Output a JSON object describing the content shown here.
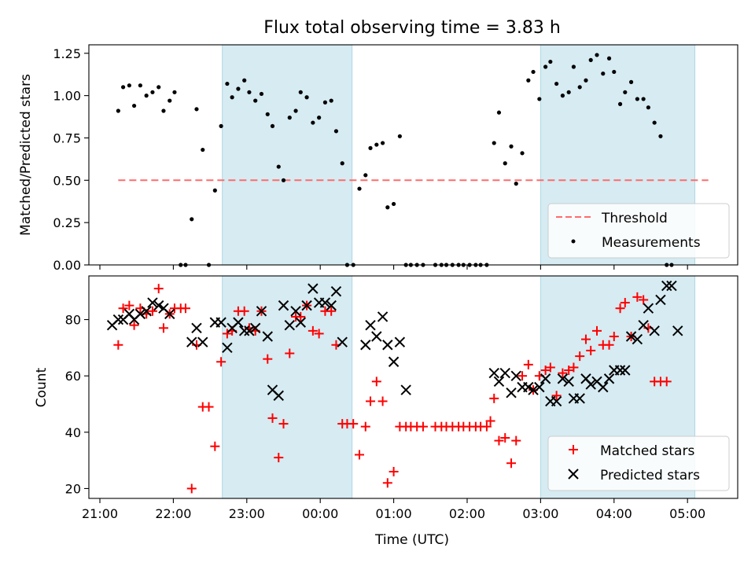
{
  "figure_title": "Flux total observing time = 3.83 h",
  "x_tick_labels": [
    "21:00",
    "22:00",
    "23:00",
    "00:00",
    "01:00",
    "02:00",
    "03:00",
    "04:00",
    "05:00"
  ],
  "colors": {
    "shade": "#add8e6",
    "threshold": "#ff6b6b",
    "measurements": "#000000",
    "matched": "#ff0000",
    "predicted": "#000000"
  },
  "chart_data": [
    {
      "type": "scatter",
      "ylabel": "Matched/Predicted stars",
      "y_tick_labels": [
        "0.00",
        "0.25",
        "0.50",
        "0.75",
        "1.00",
        "1.25"
      ],
      "y_ticks": [
        0,
        0.25,
        0.5,
        0.75,
        1.0,
        1.25
      ],
      "xlim": [
        "20:51",
        "05:41"
      ],
      "ylim": [
        0,
        1.3
      ],
      "shaded_intervals": [
        [
          "22:40",
          "00:26"
        ],
        [
          "03:00",
          "05:06"
        ]
      ],
      "legend": {
        "position": "lower right",
        "threshold_label": "Threshold",
        "measurements_label": "Measurements"
      },
      "threshold": {
        "value": 0.5,
        "x_start": "21:15",
        "x_end": "05:17"
      },
      "measurements": [
        [
          "21:15",
          0.91
        ],
        [
          "21:19",
          1.05
        ],
        [
          "21:24",
          1.06
        ],
        [
          "21:28",
          0.94
        ],
        [
          "21:33",
          1.06
        ],
        [
          "21:38",
          1.0
        ],
        [
          "21:43",
          1.02
        ],
        [
          "21:48",
          1.05
        ],
        [
          "21:52",
          0.91
        ],
        [
          "21:57",
          0.97
        ],
        [
          "22:01",
          1.02
        ],
        [
          "22:06",
          0.0
        ],
        [
          "22:10",
          0.0
        ],
        [
          "22:15",
          0.27
        ],
        [
          "22:19",
          0.92
        ],
        [
          "22:24",
          0.68
        ],
        [
          "22:29",
          0.0
        ],
        [
          "22:34",
          0.44
        ],
        [
          "22:39",
          0.82
        ],
        [
          "22:44",
          1.07
        ],
        [
          "22:48",
          0.99
        ],
        [
          "22:53",
          1.04
        ],
        [
          "22:58",
          1.09
        ],
        [
          "23:02",
          1.02
        ],
        [
          "23:07",
          0.97
        ],
        [
          "23:12",
          1.01
        ],
        [
          "23:17",
          0.89
        ],
        [
          "23:21",
          0.82
        ],
        [
          "23:26",
          0.58
        ],
        [
          "23:30",
          0.5
        ],
        [
          "23:35",
          0.87
        ],
        [
          "23:40",
          0.91
        ],
        [
          "23:44",
          1.02
        ],
        [
          "23:49",
          0.99
        ],
        [
          "23:54",
          0.84
        ],
        [
          "23:59",
          0.87
        ],
        [
          "00:04",
          0.96
        ],
        [
          "00:09",
          0.97
        ],
        [
          "00:13",
          0.79
        ],
        [
          "00:18",
          0.6
        ],
        [
          "00:22",
          0.0
        ],
        [
          "00:27",
          0.0
        ],
        [
          "00:32",
          0.45
        ],
        [
          "00:37",
          0.53
        ],
        [
          "00:41",
          0.69
        ],
        [
          "00:46",
          0.71
        ],
        [
          "00:51",
          0.72
        ],
        [
          "00:55",
          0.34
        ],
        [
          "01:00",
          0.36
        ],
        [
          "01:05",
          0.76
        ],
        [
          "01:10",
          0.0
        ],
        [
          "01:14",
          0.0
        ],
        [
          "01:19",
          0.0
        ],
        [
          "01:24",
          0.0
        ],
        [
          "01:34",
          0.0
        ],
        [
          "01:39",
          0.0
        ],
        [
          "01:43",
          0.0
        ],
        [
          "01:48",
          0.0
        ],
        [
          "01:53",
          0.0
        ],
        [
          "01:57",
          0.0
        ],
        [
          "02:02",
          0.0
        ],
        [
          "02:07",
          0.0
        ],
        [
          "02:11",
          0.0
        ],
        [
          "02:16",
          0.0
        ],
        [
          "02:22",
          0.72
        ],
        [
          "02:26",
          0.9
        ],
        [
          "02:31",
          0.6
        ],
        [
          "02:36",
          0.7
        ],
        [
          "02:40",
          0.48
        ],
        [
          "02:45",
          0.66
        ],
        [
          "02:50",
          1.09
        ],
        [
          "02:54",
          1.14
        ],
        [
          "02:59",
          0.98
        ],
        [
          "03:04",
          1.17
        ],
        [
          "03:08",
          1.2
        ],
        [
          "03:13",
          1.07
        ],
        [
          "03:18",
          1.0
        ],
        [
          "03:23",
          1.02
        ],
        [
          "03:27",
          1.17
        ],
        [
          "03:32",
          1.05
        ],
        [
          "03:37",
          1.09
        ],
        [
          "03:41",
          1.21
        ],
        [
          "03:46",
          1.24
        ],
        [
          "03:51",
          1.13
        ],
        [
          "03:56",
          1.22
        ],
        [
          "04:00",
          1.14
        ],
        [
          "04:05",
          0.95
        ],
        [
          "04:09",
          1.02
        ],
        [
          "04:14",
          1.08
        ],
        [
          "04:19",
          0.98
        ],
        [
          "04:24",
          0.98
        ],
        [
          "04:28",
          0.93
        ],
        [
          "04:33",
          0.84
        ],
        [
          "04:38",
          0.76
        ],
        [
          "04:43",
          0.0
        ],
        [
          "04:47",
          0.0
        ]
      ]
    },
    {
      "type": "scatter",
      "ylabel": "Count",
      "xlabel": "Time (UTC)",
      "y_tick_labels": [
        "20",
        "40",
        "60",
        "80"
      ],
      "y_ticks": [
        20,
        40,
        60,
        80
      ],
      "xlim": [
        "20:51",
        "05:41"
      ],
      "ylim": [
        16.5,
        95.5
      ],
      "shaded_intervals": [
        [
          "22:40",
          "00:26"
        ],
        [
          "03:00",
          "05:06"
        ]
      ],
      "legend": {
        "position": "lower right",
        "matched_label": "Matched stars",
        "predicted_label": "Predicted stars"
      },
      "matched": [
        [
          "21:15",
          71
        ],
        [
          "21:19",
          84
        ],
        [
          "21:24",
          85
        ],
        [
          "21:28",
          78
        ],
        [
          "21:33",
          84
        ],
        [
          "21:38",
          82
        ],
        [
          "21:43",
          83
        ],
        [
          "21:48",
          91
        ],
        [
          "21:52",
          77
        ],
        [
          "21:57",
          82
        ],
        [
          "22:01",
          84
        ],
        [
          "22:06",
          84
        ],
        [
          "22:10",
          84
        ],
        [
          "22:15",
          20
        ],
        [
          "22:19",
          71
        ],
        [
          "22:24",
          49
        ],
        [
          "22:29",
          49
        ],
        [
          "22:34",
          35
        ],
        [
          "22:39",
          65
        ],
        [
          "22:44",
          75
        ],
        [
          "22:48",
          76
        ],
        [
          "22:53",
          83
        ],
        [
          "22:58",
          83
        ],
        [
          "23:02",
          77
        ],
        [
          "23:07",
          76
        ],
        [
          "23:12",
          83
        ],
        [
          "23:17",
          66
        ],
        [
          "23:21",
          45
        ],
        [
          "23:26",
          31
        ],
        [
          "23:30",
          43
        ],
        [
          "23:35",
          68
        ],
        [
          "23:40",
          81
        ],
        [
          "23:44",
          81
        ],
        [
          "23:49",
          85
        ],
        [
          "23:54",
          76
        ],
        [
          "23:59",
          75
        ],
        [
          "00:04",
          83
        ],
        [
          "00:09",
          83
        ],
        [
          "00:13",
          71
        ],
        [
          "00:18",
          43
        ],
        [
          "00:22",
          43
        ],
        [
          "00:27",
          43
        ],
        [
          "00:32",
          32
        ],
        [
          "00:37",
          42
        ],
        [
          "00:41",
          51
        ],
        [
          "00:46",
          58
        ],
        [
          "00:51",
          51
        ],
        [
          "00:55",
          22
        ],
        [
          "01:00",
          26
        ],
        [
          "01:05",
          42
        ],
        [
          "01:10",
          42
        ],
        [
          "01:14",
          42
        ],
        [
          "01:19",
          42
        ],
        [
          "01:24",
          42
        ],
        [
          "01:34",
          42
        ],
        [
          "01:39",
          42
        ],
        [
          "01:43",
          42
        ],
        [
          "01:48",
          42
        ],
        [
          "01:53",
          42
        ],
        [
          "01:57",
          42
        ],
        [
          "02:02",
          42
        ],
        [
          "02:07",
          42
        ],
        [
          "02:11",
          42
        ],
        [
          "02:16",
          42
        ],
        [
          "02:19",
          44
        ],
        [
          "02:22",
          52
        ],
        [
          "02:26",
          37
        ],
        [
          "02:31",
          38
        ],
        [
          "02:36",
          29
        ],
        [
          "02:40",
          37
        ],
        [
          "02:45",
          60
        ],
        [
          "02:50",
          64
        ],
        [
          "02:54",
          55
        ],
        [
          "02:59",
          60
        ],
        [
          "03:04",
          62
        ],
        [
          "03:08",
          63
        ],
        [
          "03:13",
          53
        ],
        [
          "03:18",
          61
        ],
        [
          "03:23",
          62
        ],
        [
          "03:27",
          63
        ],
        [
          "03:32",
          67
        ],
        [
          "03:37",
          73
        ],
        [
          "03:41",
          69
        ],
        [
          "03:46",
          76
        ],
        [
          "03:51",
          71
        ],
        [
          "03:56",
          71
        ],
        [
          "04:00",
          74
        ],
        [
          "04:05",
          84
        ],
        [
          "04:09",
          86
        ],
        [
          "04:14",
          74
        ],
        [
          "04:19",
          88
        ],
        [
          "04:24",
          87
        ],
        [
          "04:28",
          77
        ],
        [
          "04:33",
          58
        ],
        [
          "04:38",
          58
        ],
        [
          "04:43",
          58
        ]
      ],
      "predicted": [
        [
          "21:10",
          78
        ],
        [
          "21:15",
          80
        ],
        [
          "21:19",
          80
        ],
        [
          "21:24",
          82
        ],
        [
          "21:28",
          80
        ],
        [
          "21:33",
          82
        ],
        [
          "21:38",
          83
        ],
        [
          "21:43",
          86
        ],
        [
          "21:48",
          85
        ],
        [
          "21:52",
          84
        ],
        [
          "21:57",
          82
        ],
        [
          "22:15",
          72
        ],
        [
          "22:19",
          77
        ],
        [
          "22:24",
          72
        ],
        [
          "22:34",
          79
        ],
        [
          "22:39",
          79
        ],
        [
          "22:44",
          70
        ],
        [
          "22:48",
          77
        ],
        [
          "22:53",
          79
        ],
        [
          "22:58",
          76
        ],
        [
          "23:02",
          76
        ],
        [
          "23:07",
          77
        ],
        [
          "23:12",
          83
        ],
        [
          "23:17",
          74
        ],
        [
          "23:21",
          55
        ],
        [
          "23:26",
          53
        ],
        [
          "23:30",
          85
        ],
        [
          "23:35",
          78
        ],
        [
          "23:40",
          83
        ],
        [
          "23:44",
          79
        ],
        [
          "23:49",
          85
        ],
        [
          "23:54",
          91
        ],
        [
          "23:59",
          86
        ],
        [
          "00:04",
          86
        ],
        [
          "00:09",
          85
        ],
        [
          "00:13",
          90
        ],
        [
          "00:18",
          72
        ],
        [
          "00:37",
          71
        ],
        [
          "00:41",
          78
        ],
        [
          "00:46",
          74
        ],
        [
          "00:51",
          81
        ],
        [
          "00:55",
          71
        ],
        [
          "01:00",
          65
        ],
        [
          "01:05",
          72
        ],
        [
          "01:10",
          55
        ],
        [
          "02:22",
          61
        ],
        [
          "02:26",
          58
        ],
        [
          "02:31",
          61
        ],
        [
          "02:36",
          54
        ],
        [
          "02:40",
          60
        ],
        [
          "02:45",
          56
        ],
        [
          "02:50",
          56
        ],
        [
          "02:54",
          55
        ],
        [
          "02:59",
          56
        ],
        [
          "03:04",
          59
        ],
        [
          "03:08",
          51
        ],
        [
          "03:13",
          51
        ],
        [
          "03:18",
          59
        ],
        [
          "03:23",
          58
        ],
        [
          "03:27",
          52
        ],
        [
          "03:32",
          52
        ],
        [
          "03:37",
          59
        ],
        [
          "03:41",
          57
        ],
        [
          "03:46",
          58
        ],
        [
          "03:51",
          56
        ],
        [
          "03:56",
          59
        ],
        [
          "04:00",
          62
        ],
        [
          "04:05",
          62
        ],
        [
          "04:09",
          62
        ],
        [
          "04:14",
          74
        ],
        [
          "04:19",
          73
        ],
        [
          "04:24",
          78
        ],
        [
          "04:28",
          84
        ],
        [
          "04:33",
          76
        ],
        [
          "04:38",
          87
        ],
        [
          "04:43",
          92
        ],
        [
          "04:47",
          92
        ],
        [
          "04:52",
          76
        ]
      ]
    }
  ]
}
